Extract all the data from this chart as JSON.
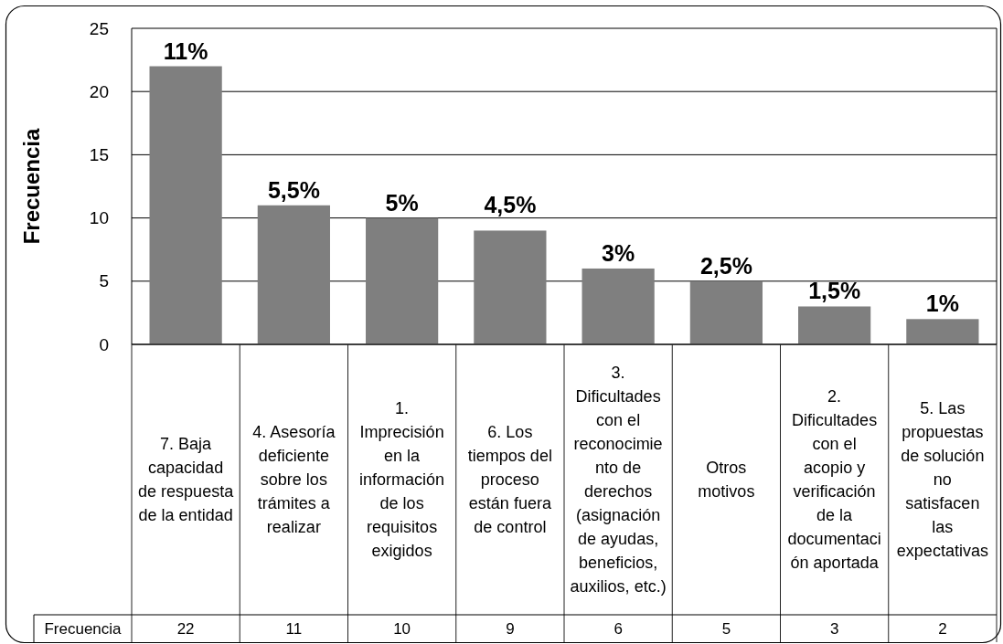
{
  "chart_data": {
    "type": "bar",
    "ylabel": "Frecuencia",
    "categories": [
      "7. Baja capacidad de respuesta de la entidad",
      "4. Asesoría deficiente sobre los trámites a realizar",
      "1. Imprecisión en la información de los requisitos exigidos",
      "6. Los tiempos del proceso están fuera de control",
      "3. Dificultades con el reconocimiento de derechos (asignación de ayudas, beneficios, auxilios, etc.)",
      "Otros motivos",
      "2. Dificultades con el acopio y verificación de la documentación aportada",
      "5. Las propuestas de solución no satisfacen las expectativas"
    ],
    "series": [
      {
        "name": "Frecuencia",
        "color": "#7f7f7f",
        "values": [
          22,
          11,
          10,
          9,
          6,
          5,
          3,
          2
        ]
      }
    ],
    "annotations": [
      {
        "text": "11%",
        "x": "7. Baja capacidad de respuesta de la entidad",
        "y": 22
      },
      {
        "text": "5,5%",
        "x": "4. Asesoría deficiente sobre los trámites a realizar",
        "y": 11
      },
      {
        "text": "5%",
        "x": "1. Imprecisión en la información de los requisitos exigidos",
        "y": 10
      },
      {
        "text": "4,5%",
        "x": "6. Los tiempos del proceso están fuera de control",
        "y": 9
      },
      {
        "text": "3%",
        "x": "3. Dificultades con el reconocimiento de derechos (asignación de ayudas, beneficios, auxilios, etc.)",
        "y": 6
      },
      {
        "text": "2,5%",
        "x": "Otros motivos",
        "y": 5
      },
      {
        "text": "1,5%",
        "x": "2. Dificultades con el acopio y verificación de la documentación aportada",
        "y": 3
      },
      {
        "text": "1%",
        "x": "5. Las propuestas de solución no satisfacen las expectativas",
        "y": 2
      }
    ],
    "ylim": [
      0,
      25
    ],
    "yticks": [
      0,
      5,
      10,
      15,
      20,
      25
    ],
    "grid": "y",
    "data_labels": true
  }
}
